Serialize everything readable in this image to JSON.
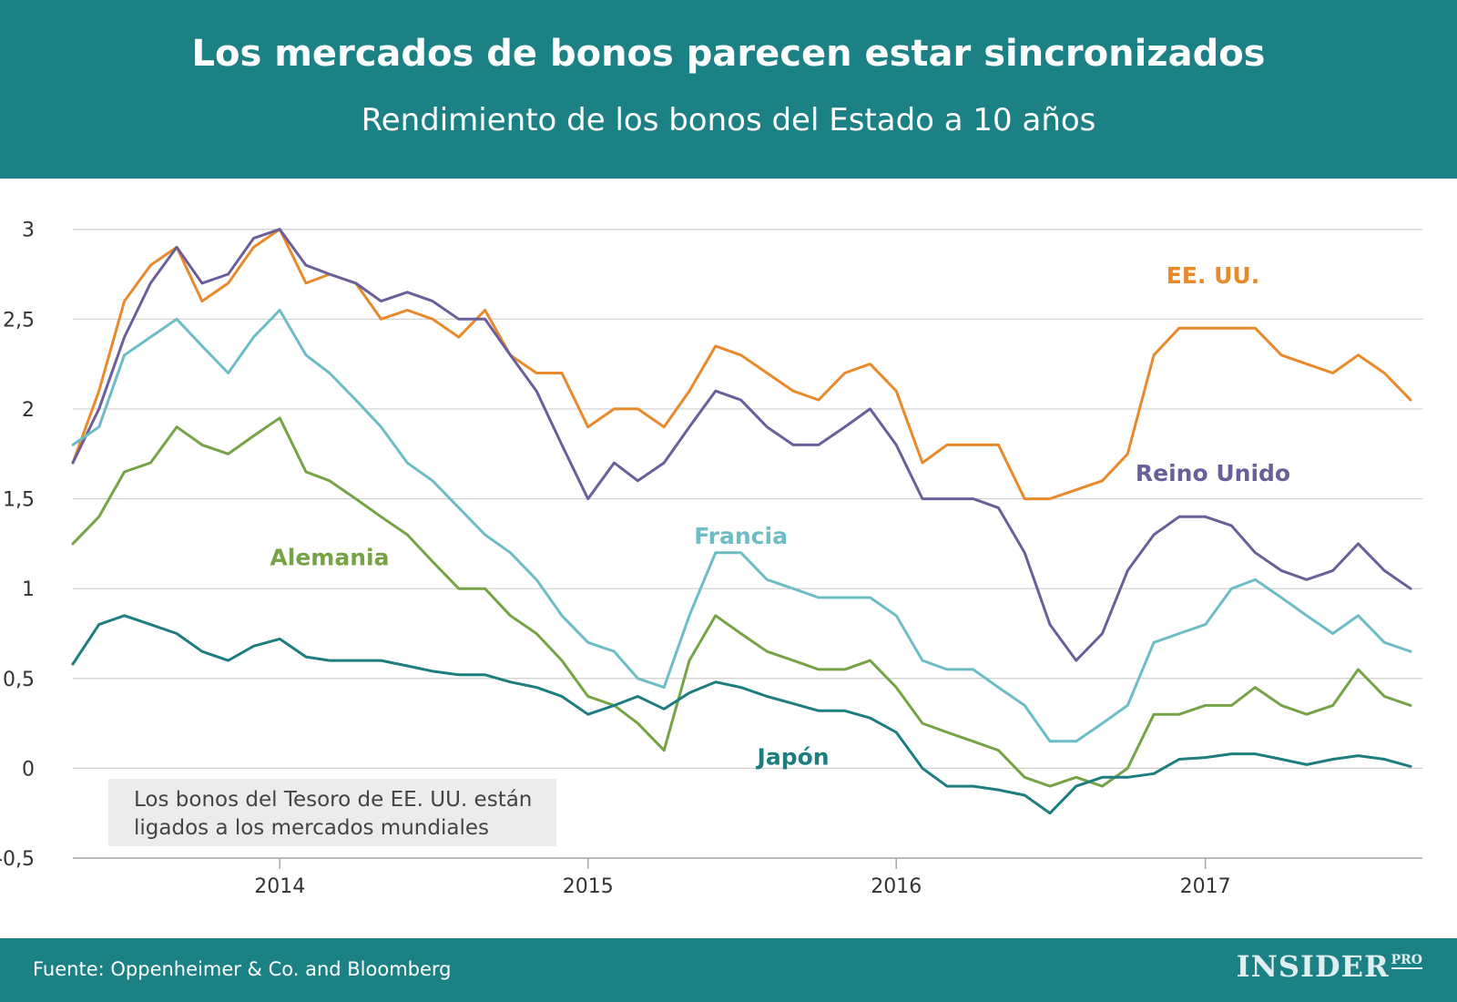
{
  "header": {
    "title": "Los mercados de bonos parecen estar sincronizados",
    "subtitle": "Rendimiento de los bonos del Estado a 10 años"
  },
  "note": {
    "line1": "Los bonos del Tesoro de EE. UU. están",
    "line2": "ligados a los mercados mundiales"
  },
  "footer": {
    "source": "Fuente: Oppenheimer & Co. and Bloomberg",
    "brand": "INSIDER",
    "brand_sub": "PRO"
  },
  "colors": {
    "header_bg": "#1b8184",
    "grid": "#cfcfcf",
    "note_bg": "#ececec"
  },
  "chart_data": {
    "type": "line",
    "x_type": "date",
    "xlim": [
      "2013-05-01",
      "2017-09-15"
    ],
    "ylim": [
      -0.5,
      3.1
    ],
    "y_ticks": [
      {
        "value": -0.5,
        "label": "-0,5"
      },
      {
        "value": 0,
        "label": "0"
      },
      {
        "value": 0.5,
        "label": "0,5"
      },
      {
        "value": 1,
        "label": "1"
      },
      {
        "value": 1.5,
        "label": "1,5"
      },
      {
        "value": 2,
        "label": "2"
      },
      {
        "value": 2.5,
        "label": "2,5"
      },
      {
        "value": 3,
        "label": "3"
      }
    ],
    "x_ticks": [
      {
        "value": "2014-01-01",
        "label": "2014"
      },
      {
        "value": "2015-01-01",
        "label": "2015"
      },
      {
        "value": "2016-01-01",
        "label": "2016"
      },
      {
        "value": "2017-01-01",
        "label": "2017"
      }
    ],
    "grid": "horizontal",
    "series": [
      {
        "name": "EE. UU.",
        "color": "#e8892c",
        "label_anchor": {
          "x": "2017-01-10",
          "y": 2.7
        },
        "x": [
          "2013-05-01",
          "2013-06-01",
          "2013-07-01",
          "2013-08-01",
          "2013-09-01",
          "2013-10-01",
          "2013-11-01",
          "2013-12-01",
          "2014-01-01",
          "2014-02-01",
          "2014-03-01",
          "2014-04-01",
          "2014-05-01",
          "2014-06-01",
          "2014-07-01",
          "2014-08-01",
          "2014-09-01",
          "2014-10-01",
          "2014-11-01",
          "2014-12-01",
          "2015-01-01",
          "2015-02-01",
          "2015-03-01",
          "2015-04-01",
          "2015-05-01",
          "2015-06-01",
          "2015-07-01",
          "2015-08-01",
          "2015-09-01",
          "2015-10-01",
          "2015-11-01",
          "2015-12-01",
          "2016-01-01",
          "2016-02-01",
          "2016-03-01",
          "2016-04-01",
          "2016-05-01",
          "2016-06-01",
          "2016-07-01",
          "2016-08-01",
          "2016-09-01",
          "2016-10-01",
          "2016-11-01",
          "2016-12-01",
          "2017-01-01",
          "2017-02-01",
          "2017-03-01",
          "2017-04-01",
          "2017-05-01",
          "2017-06-01",
          "2017-07-01",
          "2017-08-01",
          "2017-09-01"
        ],
        "values": [
          1.7,
          2.1,
          2.6,
          2.8,
          2.9,
          2.6,
          2.7,
          2.9,
          3.0,
          2.7,
          2.75,
          2.7,
          2.5,
          2.55,
          2.5,
          2.4,
          2.55,
          2.3,
          2.2,
          2.2,
          1.9,
          2.0,
          2.0,
          1.9,
          2.1,
          2.35,
          2.3,
          2.2,
          2.1,
          2.05,
          2.2,
          2.25,
          2.1,
          1.7,
          1.8,
          1.8,
          1.8,
          1.5,
          1.5,
          1.55,
          1.6,
          1.75,
          2.3,
          2.45,
          2.45,
          2.45,
          2.45,
          2.3,
          2.25,
          2.2,
          2.3,
          2.2,
          2.05
        ]
      },
      {
        "name": "Reino Unido",
        "color": "#6a5f99",
        "label_anchor": {
          "x": "2017-01-10",
          "y": 1.6
        },
        "x": [
          "2013-05-01",
          "2013-06-01",
          "2013-07-01",
          "2013-08-01",
          "2013-09-01",
          "2013-10-01",
          "2013-11-01",
          "2013-12-01",
          "2014-01-01",
          "2014-02-01",
          "2014-03-01",
          "2014-04-01",
          "2014-05-01",
          "2014-06-01",
          "2014-07-01",
          "2014-08-01",
          "2014-09-01",
          "2014-10-01",
          "2014-11-01",
          "2014-12-01",
          "2015-01-01",
          "2015-02-01",
          "2015-03-01",
          "2015-04-01",
          "2015-05-01",
          "2015-06-01",
          "2015-07-01",
          "2015-08-01",
          "2015-09-01",
          "2015-10-01",
          "2015-11-01",
          "2015-12-01",
          "2016-01-01",
          "2016-02-01",
          "2016-03-01",
          "2016-04-01",
          "2016-05-01",
          "2016-06-01",
          "2016-07-01",
          "2016-08-01",
          "2016-09-01",
          "2016-10-01",
          "2016-11-01",
          "2016-12-01",
          "2017-01-01",
          "2017-02-01",
          "2017-03-01",
          "2017-04-01",
          "2017-05-01",
          "2017-06-01",
          "2017-07-01",
          "2017-08-01",
          "2017-09-01"
        ],
        "values": [
          1.7,
          2.0,
          2.4,
          2.7,
          2.9,
          2.7,
          2.75,
          2.95,
          3.0,
          2.8,
          2.75,
          2.7,
          2.6,
          2.65,
          2.6,
          2.5,
          2.5,
          2.3,
          2.1,
          1.8,
          1.5,
          1.7,
          1.6,
          1.7,
          1.9,
          2.1,
          2.05,
          1.9,
          1.8,
          1.8,
          1.9,
          2.0,
          1.8,
          1.5,
          1.5,
          1.5,
          1.45,
          1.2,
          0.8,
          0.6,
          0.75,
          1.1,
          1.3,
          1.4,
          1.4,
          1.35,
          1.2,
          1.1,
          1.05,
          1.1,
          1.25,
          1.1,
          1.0
        ]
      },
      {
        "name": "Francia",
        "color": "#6dbcc6",
        "label_anchor": {
          "x": "2015-07-01",
          "y": 1.25
        },
        "x": [
          "2013-05-01",
          "2013-06-01",
          "2013-07-01",
          "2013-08-01",
          "2013-09-01",
          "2013-10-01",
          "2013-11-01",
          "2013-12-01",
          "2014-01-01",
          "2014-02-01",
          "2014-03-01",
          "2014-04-01",
          "2014-05-01",
          "2014-06-01",
          "2014-07-01",
          "2014-08-01",
          "2014-09-01",
          "2014-10-01",
          "2014-11-01",
          "2014-12-01",
          "2015-01-01",
          "2015-02-01",
          "2015-03-01",
          "2015-04-01",
          "2015-05-01",
          "2015-06-01",
          "2015-07-01",
          "2015-08-01",
          "2015-09-01",
          "2015-10-01",
          "2015-11-01",
          "2015-12-01",
          "2016-01-01",
          "2016-02-01",
          "2016-03-01",
          "2016-04-01",
          "2016-05-01",
          "2016-06-01",
          "2016-07-01",
          "2016-08-01",
          "2016-09-01",
          "2016-10-01",
          "2016-11-01",
          "2016-12-01",
          "2017-01-01",
          "2017-02-01",
          "2017-03-01",
          "2017-04-01",
          "2017-05-01",
          "2017-06-01",
          "2017-07-01",
          "2017-08-01",
          "2017-09-01"
        ],
        "values": [
          1.8,
          1.9,
          2.3,
          2.4,
          2.5,
          2.35,
          2.2,
          2.4,
          2.55,
          2.3,
          2.2,
          2.05,
          1.9,
          1.7,
          1.6,
          1.45,
          1.3,
          1.2,
          1.05,
          0.85,
          0.7,
          0.65,
          0.5,
          0.45,
          0.85,
          1.2,
          1.2,
          1.05,
          1.0,
          0.95,
          0.95,
          0.95,
          0.85,
          0.6,
          0.55,
          0.55,
          0.45,
          0.35,
          0.15,
          0.15,
          0.25,
          0.35,
          0.7,
          0.75,
          0.8,
          1.0,
          1.05,
          0.95,
          0.85,
          0.75,
          0.85,
          0.7,
          0.65
        ]
      },
      {
        "name": "Alemania",
        "color": "#75a345",
        "label_anchor": {
          "x": "2014-03-01",
          "y": 1.13
        },
        "x": [
          "2013-05-01",
          "2013-06-01",
          "2013-07-01",
          "2013-08-01",
          "2013-09-01",
          "2013-10-01",
          "2013-11-01",
          "2013-12-01",
          "2014-01-01",
          "2014-02-01",
          "2014-03-01",
          "2014-04-01",
          "2014-05-01",
          "2014-06-01",
          "2014-07-01",
          "2014-08-01",
          "2014-09-01",
          "2014-10-01",
          "2014-11-01",
          "2014-12-01",
          "2015-01-01",
          "2015-02-01",
          "2015-03-01",
          "2015-04-01",
          "2015-05-01",
          "2015-06-01",
          "2015-07-01",
          "2015-08-01",
          "2015-09-01",
          "2015-10-01",
          "2015-11-01",
          "2015-12-01",
          "2016-01-01",
          "2016-02-01",
          "2016-03-01",
          "2016-04-01",
          "2016-05-01",
          "2016-06-01",
          "2016-07-01",
          "2016-08-01",
          "2016-09-01",
          "2016-10-01",
          "2016-11-01",
          "2016-12-01",
          "2017-01-01",
          "2017-02-01",
          "2017-03-01",
          "2017-04-01",
          "2017-05-01",
          "2017-06-01",
          "2017-07-01",
          "2017-08-01",
          "2017-09-01"
        ],
        "values": [
          1.25,
          1.4,
          1.65,
          1.7,
          1.9,
          1.8,
          1.75,
          1.85,
          1.95,
          1.65,
          1.6,
          1.5,
          1.4,
          1.3,
          1.15,
          1.0,
          1.0,
          0.85,
          0.75,
          0.6,
          0.4,
          0.35,
          0.25,
          0.1,
          0.6,
          0.85,
          0.75,
          0.65,
          0.6,
          0.55,
          0.55,
          0.6,
          0.45,
          0.25,
          0.2,
          0.15,
          0.1,
          -0.05,
          -0.1,
          -0.05,
          -0.1,
          0.0,
          0.3,
          0.3,
          0.35,
          0.35,
          0.45,
          0.35,
          0.3,
          0.35,
          0.55,
          0.4,
          0.35
        ]
      },
      {
        "name": "Japón",
        "color": "#1d7d80",
        "label_anchor": {
          "x": "2015-09-01",
          "y": 0.02
        },
        "x": [
          "2013-05-01",
          "2013-06-01",
          "2013-07-01",
          "2013-08-01",
          "2013-09-01",
          "2013-10-01",
          "2013-11-01",
          "2013-12-01",
          "2014-01-01",
          "2014-02-01",
          "2014-03-01",
          "2014-04-01",
          "2014-05-01",
          "2014-06-01",
          "2014-07-01",
          "2014-08-01",
          "2014-09-01",
          "2014-10-01",
          "2014-11-01",
          "2014-12-01",
          "2015-01-01",
          "2015-02-01",
          "2015-03-01",
          "2015-04-01",
          "2015-05-01",
          "2015-06-01",
          "2015-07-01",
          "2015-08-01",
          "2015-09-01",
          "2015-10-01",
          "2015-11-01",
          "2015-12-01",
          "2016-01-01",
          "2016-02-01",
          "2016-03-01",
          "2016-04-01",
          "2016-05-01",
          "2016-06-01",
          "2016-07-01",
          "2016-08-01",
          "2016-09-01",
          "2016-10-01",
          "2016-11-01",
          "2016-12-01",
          "2017-01-01",
          "2017-02-01",
          "2017-03-01",
          "2017-04-01",
          "2017-05-01",
          "2017-06-01",
          "2017-07-01",
          "2017-08-01",
          "2017-09-01"
        ],
        "values": [
          0.58,
          0.8,
          0.85,
          0.8,
          0.75,
          0.65,
          0.6,
          0.68,
          0.72,
          0.62,
          0.6,
          0.6,
          0.6,
          0.57,
          0.54,
          0.52,
          0.52,
          0.48,
          0.45,
          0.4,
          0.3,
          0.35,
          0.4,
          0.33,
          0.42,
          0.48,
          0.45,
          0.4,
          0.36,
          0.32,
          0.32,
          0.28,
          0.2,
          0.0,
          -0.1,
          -0.1,
          -0.12,
          -0.15,
          -0.25,
          -0.1,
          -0.05,
          -0.05,
          -0.03,
          0.05,
          0.06,
          0.08,
          0.08,
          0.05,
          0.02,
          0.05,
          0.07,
          0.05,
          0.01
        ]
      }
    ]
  }
}
